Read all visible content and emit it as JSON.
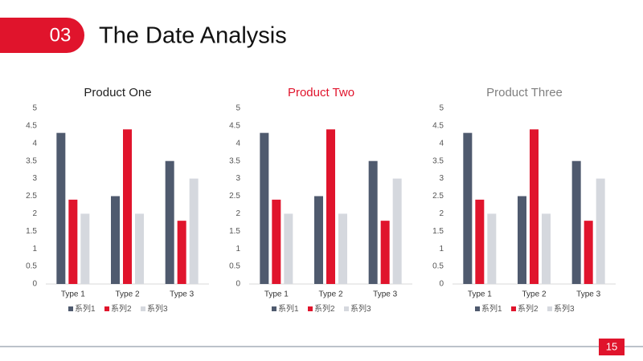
{
  "header": {
    "number": "03",
    "title": "The Date Analysis"
  },
  "page_number": "15",
  "chart_data": [
    {
      "type": "bar",
      "title": "Product One",
      "title_color": "#222222",
      "categories": [
        "Type 1",
        "Type 2",
        "Type 3"
      ],
      "series": [
        {
          "name": "系列1",
          "color": "#4f5a6e",
          "values": [
            4.3,
            2.5,
            3.5
          ]
        },
        {
          "name": "系列2",
          "color": "#e0142c",
          "values": [
            2.4,
            4.4,
            1.8
          ]
        },
        {
          "name": "系列3",
          "color": "#d5d8de",
          "values": [
            2,
            2,
            3
          ]
        }
      ],
      "ylim": [
        0,
        5
      ],
      "yticks": [
        0,
        0.5,
        1,
        1.5,
        2,
        2.5,
        3,
        3.5,
        4,
        4.5,
        5
      ],
      "grid": false,
      "legend": "bottom"
    },
    {
      "type": "bar",
      "title": "Product Two",
      "title_color": "#e0142c",
      "categories": [
        "Type 1",
        "Type 2",
        "Type 3"
      ],
      "series": [
        {
          "name": "系列1",
          "color": "#4f5a6e",
          "values": [
            4.3,
            2.5,
            3.5
          ]
        },
        {
          "name": "系列2",
          "color": "#e0142c",
          "values": [
            2.4,
            4.4,
            1.8
          ]
        },
        {
          "name": "系列3",
          "color": "#d5d8de",
          "values": [
            2,
            2,
            3
          ]
        }
      ],
      "ylim": [
        0,
        5
      ],
      "yticks": [
        0,
        0.5,
        1,
        1.5,
        2,
        2.5,
        3,
        3.5,
        4,
        4.5,
        5
      ],
      "grid": false,
      "legend": "bottom"
    },
    {
      "type": "bar",
      "title": "Product Three",
      "title_color": "#7f7f7f",
      "categories": [
        "Type 1",
        "Type 2",
        "Type 3"
      ],
      "series": [
        {
          "name": "系列1",
          "color": "#4f5a6e",
          "values": [
            4.3,
            2.5,
            3.5
          ]
        },
        {
          "name": "系列2",
          "color": "#e0142c",
          "values": [
            2.4,
            4.4,
            1.8
          ]
        },
        {
          "name": "系列3",
          "color": "#d5d8de",
          "values": [
            2,
            2,
            3
          ]
        }
      ],
      "ylim": [
        0,
        5
      ],
      "yticks": [
        0,
        0.5,
        1,
        1.5,
        2,
        2.5,
        3,
        3.5,
        4,
        4.5,
        5
      ],
      "grid": false,
      "legend": "bottom"
    }
  ]
}
